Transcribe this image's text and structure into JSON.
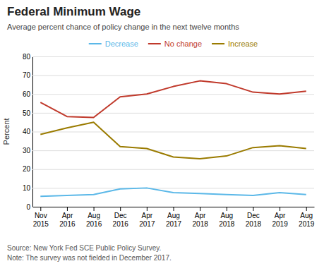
{
  "chart_data": {
    "type": "line",
    "title": "Federal Minimum Wage",
    "subtitle": "Average percent chance of policy change in the next twelve months",
    "y_label": "Percent",
    "annotations": [
      "Source: New York Fed SCE Public Policy Survey.",
      "Note: The survey was not fielded in December 2017."
    ],
    "categories": [
      "Nov\n2015",
      "Apr\n2016",
      "Aug\n2016",
      "Dec\n2016",
      "Apr\n2017",
      "Aug\n2017",
      "Apr\n2018",
      "Aug\n2018",
      "Dec\n2018",
      "Apr\n2019",
      "Aug\n2019"
    ],
    "series": [
      {
        "name": "Decrease",
        "color": "#5bb8e8",
        "values": [
          5.5,
          6.0,
          6.5,
          9.5,
          10.0,
          7.5,
          7.0,
          6.5,
          6.0,
          7.5,
          6.5
        ]
      },
      {
        "name": "No change",
        "color": "#c0392b",
        "values": [
          55.5,
          48.0,
          47.5,
          58.5,
          60.0,
          64.0,
          67.0,
          65.5,
          61.0,
          60.0,
          61.5
        ]
      },
      {
        "name": "Increase",
        "color": "#9a7b00",
        "values": [
          38.5,
          42.0,
          45.0,
          32.0,
          31.0,
          26.5,
          25.5,
          27.0,
          31.5,
          32.5,
          31.0
        ]
      }
    ],
    "ylim": [
      0,
      80
    ],
    "yticks": [
      0,
      10,
      20,
      30,
      40,
      50,
      60,
      70,
      80
    ],
    "grid": true,
    "legend": "top"
  }
}
